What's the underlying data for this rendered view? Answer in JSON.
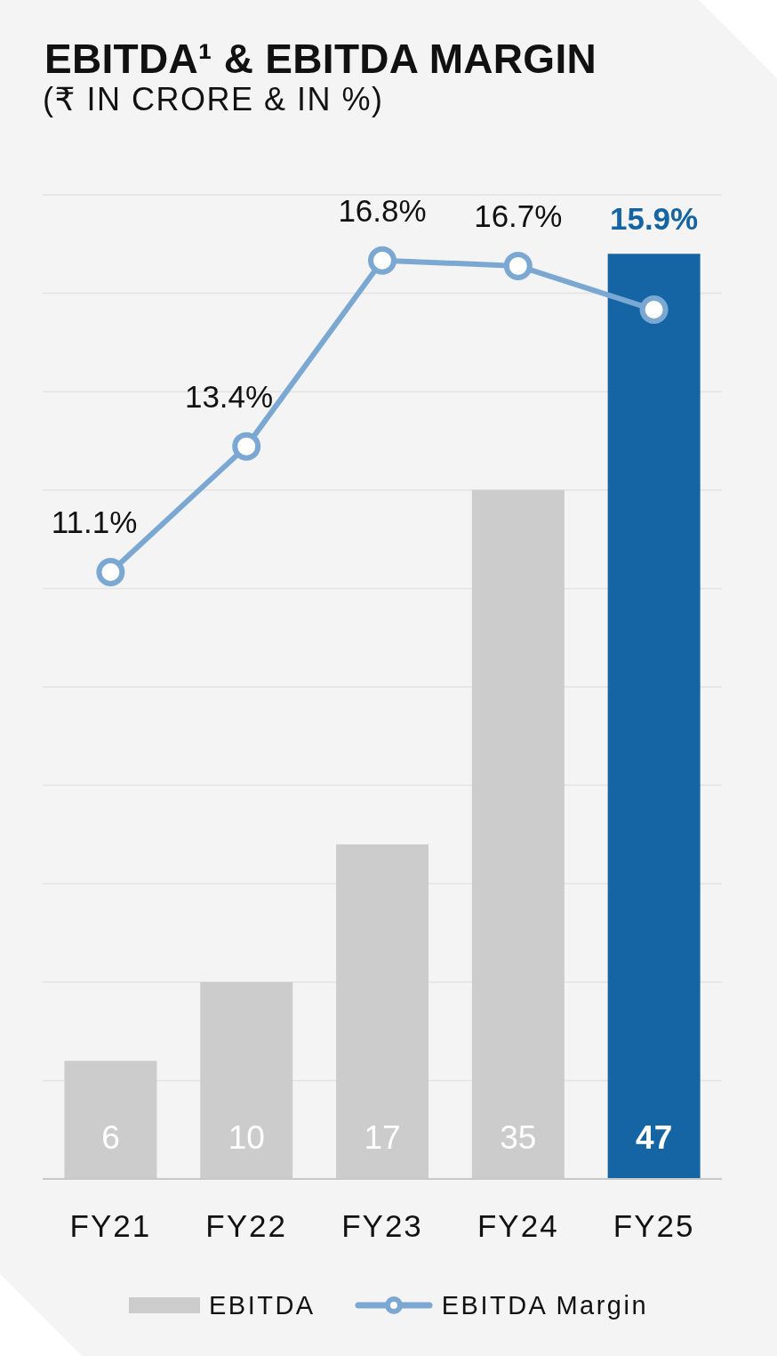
{
  "chart_data": {
    "type": "bar",
    "title": "EBITDA¹ & EBITDA MARGIN",
    "subtitle": "(₹ IN CRORE & IN %)",
    "categories": [
      "FY21",
      "FY22",
      "FY23",
      "FY24",
      "FY25"
    ],
    "series": [
      {
        "name": "EBITDA",
        "color": "#cccccc",
        "colors": [
          "#cccccc",
          "#cccccc",
          "#cccccc",
          "#cccccc",
          "#1565a5"
        ],
        "values": [
          6,
          10,
          17,
          35,
          47
        ],
        "value_labels": [
          "6",
          "10",
          "17",
          "35",
          "47"
        ]
      },
      {
        "name": "EBITDA Margin",
        "type": "line",
        "axis": "y2",
        "color": "#7aa8d3",
        "values": [
          11.1,
          13.4,
          16.8,
          16.7,
          15.9
        ],
        "value_labels": [
          "11.1%",
          "13.4%",
          "16.8%",
          "16.7%",
          "15.9%"
        ]
      }
    ],
    "ylim": [
      0,
      50
    ],
    "yticks": [
      {
        "value": 0,
        "label": null
      },
      {
        "value": 5,
        "label": null
      },
      {
        "value": 10,
        "label": null
      },
      {
        "value": 15,
        "label": null
      },
      {
        "value": 20,
        "label": null
      },
      {
        "value": 25,
        "label": null
      },
      {
        "value": 30,
        "label": null
      },
      {
        "value": 35,
        "label": null
      },
      {
        "value": 40,
        "label": null
      },
      {
        "value": 45,
        "label": null
      },
      {
        "value": 50,
        "label": null
      }
    ],
    "y2lim": [
      0,
      18
    ],
    "grid": "y",
    "legend": "bottom",
    "marker": "circle",
    "tick_labels": "x"
  }
}
